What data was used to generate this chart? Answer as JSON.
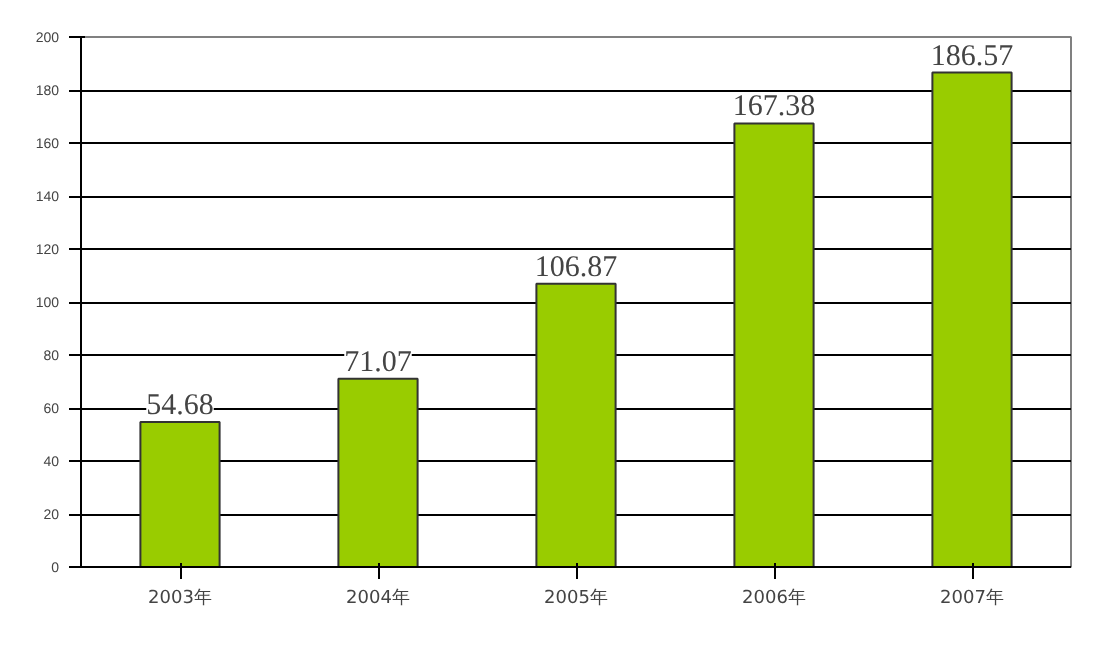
{
  "chart_data": {
    "type": "bar",
    "categories": [
      "2003年",
      "2004年",
      "2005年",
      "2006年",
      "2007年"
    ],
    "values": [
      54.68,
      71.07,
      106.87,
      167.38,
      186.57
    ],
    "color": "#99cc00",
    "ylim": [
      0,
      200
    ],
    "yticks": [
      0,
      20,
      40,
      60,
      80,
      100,
      120,
      140,
      160,
      180,
      200
    ],
    "grid": "y",
    "data_labels": true
  }
}
